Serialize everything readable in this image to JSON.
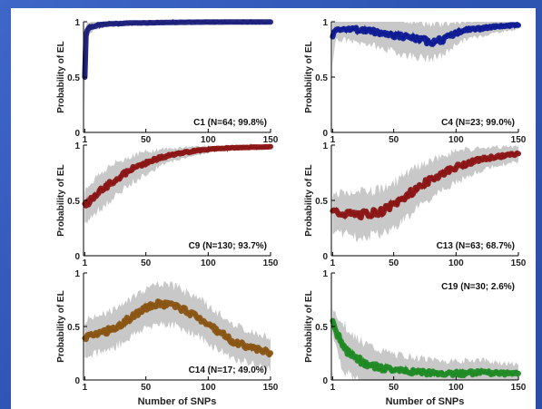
{
  "figure": {
    "xlabel": "Number of SNPs",
    "ylabel": "Probability of EL"
  },
  "chart_data": [
    {
      "type": "line",
      "title": "C1 (N=64; 99.8%)",
      "color": "#1b1f7a",
      "xlim": [
        0,
        150
      ],
      "ylim": [
        0,
        1
      ],
      "xticks": [
        "1",
        "50",
        "100",
        "150"
      ],
      "yticks": [
        "0",
        "0.5",
        "1"
      ],
      "x": [
        1,
        2,
        3,
        5,
        8,
        12,
        20,
        30,
        40,
        50,
        75,
        100,
        125,
        150
      ],
      "mean": [
        0.5,
        0.88,
        0.93,
        0.95,
        0.96,
        0.97,
        0.98,
        0.985,
        0.99,
        0.99,
        0.995,
        0.997,
        0.998,
        0.998
      ],
      "band": [
        0.25,
        0.08,
        0.06,
        0.05,
        0.04,
        0.03,
        0.02,
        0.015,
        0.01,
        0.01,
        0.005,
        0.004,
        0.003,
        0.002
      ]
    },
    {
      "type": "line",
      "title": "C4 (N=23; 99.0%)",
      "color": "#0d1a94",
      "xlim": [
        0,
        150
      ],
      "ylim": [
        0,
        1
      ],
      "xticks": [
        "1",
        "50",
        "100",
        "150"
      ],
      "yticks": [
        "0",
        "0.5",
        "1"
      ],
      "x": [
        1,
        3,
        10,
        20,
        30,
        40,
        50,
        60,
        70,
        80,
        90,
        100,
        110,
        120,
        135,
        150
      ],
      "mean": [
        0.85,
        0.93,
        0.94,
        0.93,
        0.92,
        0.9,
        0.88,
        0.86,
        0.84,
        0.82,
        0.84,
        0.9,
        0.93,
        0.94,
        0.96,
        0.97
      ],
      "band": [
        0.2,
        0.1,
        0.1,
        0.12,
        0.12,
        0.14,
        0.15,
        0.16,
        0.16,
        0.16,
        0.14,
        0.1,
        0.08,
        0.07,
        0.05,
        0.04
      ]
    },
    {
      "type": "line",
      "title": "C9 (N=130; 93.7%)",
      "color": "#8b1414",
      "xlim": [
        0,
        150
      ],
      "ylim": [
        0,
        1
      ],
      "xticks": [
        "1",
        "50",
        "100",
        "150"
      ],
      "yticks": [
        "0",
        "0.5",
        "1"
      ],
      "x": [
        1,
        10,
        20,
        30,
        40,
        50,
        60,
        70,
        80,
        90,
        100,
        110,
        120,
        135,
        150
      ],
      "mean": [
        0.45,
        0.55,
        0.64,
        0.72,
        0.79,
        0.84,
        0.88,
        0.91,
        0.93,
        0.95,
        0.96,
        0.97,
        0.975,
        0.98,
        0.985
      ],
      "band": [
        0.15,
        0.16,
        0.16,
        0.14,
        0.12,
        0.1,
        0.08,
        0.06,
        0.05,
        0.04,
        0.03,
        0.02,
        0.02,
        0.015,
        0.01
      ]
    },
    {
      "type": "line",
      "title": "C13 (N=63; 68.7%)",
      "color": "#8b1414",
      "xlim": [
        0,
        150
      ],
      "ylim": [
        0,
        1
      ],
      "xticks": [
        "1",
        "50",
        "100",
        "150"
      ],
      "yticks": [
        "0",
        "0.5",
        "1"
      ],
      "x": [
        1,
        10,
        20,
        30,
        40,
        50,
        60,
        70,
        80,
        90,
        100,
        110,
        120,
        135,
        150
      ],
      "mean": [
        0.4,
        0.38,
        0.37,
        0.38,
        0.4,
        0.46,
        0.54,
        0.62,
        0.69,
        0.75,
        0.8,
        0.84,
        0.87,
        0.9,
        0.92
      ],
      "band": [
        0.17,
        0.18,
        0.2,
        0.2,
        0.2,
        0.2,
        0.2,
        0.18,
        0.17,
        0.16,
        0.14,
        0.12,
        0.1,
        0.08,
        0.07
      ]
    },
    {
      "type": "line",
      "title": "C14 (N=17; 49.0%)",
      "color": "#8a5412",
      "xlim": [
        0,
        150
      ],
      "ylim": [
        0,
        1
      ],
      "xticks": [
        "1",
        "50",
        "100",
        "150"
      ],
      "yticks": [
        "0",
        "0.5",
        "1"
      ],
      "x": [
        1,
        10,
        20,
        30,
        40,
        50,
        60,
        70,
        80,
        90,
        100,
        110,
        120,
        135,
        150
      ],
      "mean": [
        0.4,
        0.42,
        0.46,
        0.52,
        0.6,
        0.67,
        0.71,
        0.7,
        0.66,
        0.6,
        0.52,
        0.44,
        0.36,
        0.3,
        0.25
      ],
      "band": [
        0.16,
        0.17,
        0.18,
        0.18,
        0.18,
        0.18,
        0.18,
        0.18,
        0.18,
        0.18,
        0.18,
        0.17,
        0.16,
        0.15,
        0.15
      ]
    },
    {
      "type": "line",
      "title": "C19 (N=30;  2.6%)",
      "color": "#1e8a23",
      "xlim": [
        0,
        150
      ],
      "ylim": [
        0,
        1
      ],
      "xticks": [
        "1",
        "50",
        "100",
        "150"
      ],
      "yticks": [
        "0",
        "0.5",
        "1"
      ],
      "x": [
        1,
        5,
        10,
        20,
        30,
        40,
        50,
        60,
        75,
        90,
        105,
        120,
        135,
        150
      ],
      "mean": [
        0.55,
        0.42,
        0.3,
        0.2,
        0.14,
        0.11,
        0.09,
        0.08,
        0.07,
        0.06,
        0.06,
        0.07,
        0.06,
        0.06
      ],
      "band": [
        0.12,
        0.18,
        0.22,
        0.2,
        0.18,
        0.16,
        0.15,
        0.14,
        0.13,
        0.12,
        0.12,
        0.12,
        0.1,
        0.09
      ]
    }
  ]
}
